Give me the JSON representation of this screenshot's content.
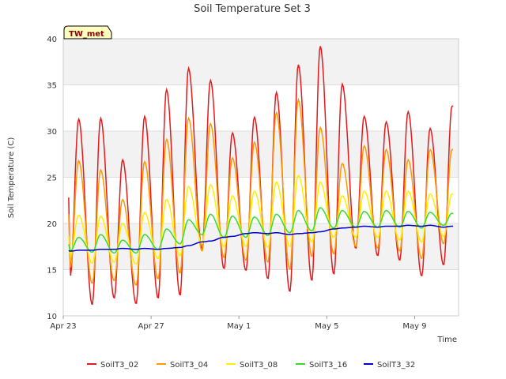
{
  "chart_data": {
    "type": "line",
    "title": "Soil Temperature Set 3",
    "xlabel": "Time",
    "ylabel": "Soil Temperature (C)",
    "xlim": [
      "2023-04-23",
      "2023-05-11"
    ],
    "ylim": [
      10,
      40
    ],
    "y_ticks": [
      10,
      15,
      20,
      25,
      30,
      35,
      40
    ],
    "x_ticks": [
      {
        "date": "2023-04-23",
        "label": "Apr 23"
      },
      {
        "date": "2023-04-27",
        "label": "Apr 27"
      },
      {
        "date": "2023-05-01",
        "label": "May 1"
      },
      {
        "date": "2023-05-05",
        "label": "May 5"
      },
      {
        "date": "2023-05-09",
        "label": "May 9"
      }
    ],
    "grid": true,
    "legend_position": "bottom",
    "badge": "TW_met",
    "series": [
      {
        "name": "SoilT3_02",
        "color": "#e41a1c",
        "x": [
          "2023-04-23",
          "2023-04-24",
          "2023-04-25",
          "2023-04-26",
          "2023-04-27",
          "2023-04-28",
          "2023-04-29",
          "2023-04-30",
          "2023-05-01",
          "2023-05-02",
          "2023-05-03",
          "2023-05-04",
          "2023-05-05",
          "2023-05-06",
          "2023-05-07",
          "2023-05-08",
          "2023-05-09",
          "2023-05-10"
        ],
        "max": [
          31.3,
          31.4,
          26.9,
          31.6,
          34.5,
          36.8,
          35.5,
          29.8,
          31.5,
          34.2,
          37.2,
          39.2,
          35.1,
          31.6,
          31.0,
          32.1,
          30.3,
          32.7
        ],
        "min": [
          14.3,
          11.2,
          11.9,
          11.3,
          11.9,
          12.2,
          17.2,
          15.1,
          14.9,
          14.0,
          12.6,
          13.8,
          14.5,
          17.3,
          16.5,
          16.0,
          14.3,
          15.5
        ]
      },
      {
        "name": "SoilT3_04",
        "color": "#ff9900",
        "x": [
          "2023-04-23",
          "2023-04-24",
          "2023-04-25",
          "2023-04-26",
          "2023-04-27",
          "2023-04-28",
          "2023-04-29",
          "2023-04-30",
          "2023-05-01",
          "2023-05-02",
          "2023-05-03",
          "2023-05-04",
          "2023-05-05",
          "2023-05-06",
          "2023-05-07",
          "2023-05-08",
          "2023-05-09",
          "2023-05-10"
        ],
        "max": [
          26.8,
          25.8,
          22.6,
          26.7,
          29.1,
          31.4,
          30.8,
          27.1,
          28.8,
          32.0,
          33.4,
          30.4,
          26.5,
          28.4,
          28.0,
          26.9,
          28.0,
          28.0
        ],
        "min": [
          15.2,
          13.5,
          13.8,
          13.3,
          14.0,
          14.6,
          17.0,
          16.3,
          16.0,
          15.8,
          15.0,
          16.4,
          16.7,
          17.5,
          17.3,
          17.0,
          16.2,
          17.8
        ]
      },
      {
        "name": "SoilT3_08",
        "color": "#ffee00",
        "x": [
          "2023-04-23",
          "2023-04-24",
          "2023-04-25",
          "2023-04-26",
          "2023-04-27",
          "2023-04-28",
          "2023-04-29",
          "2023-04-30",
          "2023-05-01",
          "2023-05-02",
          "2023-05-03",
          "2023-05-04",
          "2023-05-05",
          "2023-05-06",
          "2023-05-07",
          "2023-05-08",
          "2023-05-09",
          "2023-05-10"
        ],
        "max": [
          20.9,
          20.8,
          20.0,
          21.2,
          22.6,
          24.0,
          24.2,
          23.0,
          23.5,
          24.5,
          25.2,
          24.5,
          23.0,
          23.5,
          23.5,
          23.5,
          23.2,
          23.2
        ],
        "min": [
          16.5,
          15.7,
          15.8,
          15.6,
          16.2,
          16.5,
          17.8,
          17.5,
          17.5,
          17.4,
          17.5,
          18.0,
          18.5,
          18.5,
          18.5,
          18.2,
          18.0,
          18.6
        ]
      },
      {
        "name": "SoilT3_16",
        "color": "#33dd33",
        "x": [
          "2023-04-23",
          "2023-04-24",
          "2023-04-25",
          "2023-04-26",
          "2023-04-27",
          "2023-04-28",
          "2023-04-29",
          "2023-04-30",
          "2023-05-01",
          "2023-05-02",
          "2023-05-03",
          "2023-05-04",
          "2023-05-05",
          "2023-05-06",
          "2023-05-07",
          "2023-05-08",
          "2023-05-09",
          "2023-05-10"
        ],
        "max": [
          18.5,
          18.8,
          18.2,
          18.8,
          19.4,
          20.4,
          21.0,
          20.8,
          20.7,
          21.0,
          21.4,
          21.7,
          21.4,
          21.3,
          21.4,
          21.3,
          21.2,
          21.1
        ],
        "min": [
          17.0,
          16.9,
          16.8,
          16.8,
          17.2,
          17.8,
          18.8,
          18.5,
          18.5,
          18.7,
          19.0,
          19.2,
          19.5,
          19.6,
          19.6,
          19.6,
          19.5,
          19.8
        ]
      },
      {
        "name": "SoilT3_32",
        "color": "#0000cc",
        "x": [
          "2023-04-23",
          "2023-04-24",
          "2023-04-25",
          "2023-04-26",
          "2023-04-27",
          "2023-04-28",
          "2023-04-29",
          "2023-04-30",
          "2023-05-01",
          "2023-05-02",
          "2023-05-03",
          "2023-05-04",
          "2023-05-05",
          "2023-05-06",
          "2023-05-07",
          "2023-05-08",
          "2023-05-09",
          "2023-05-10"
        ],
        "max": [
          17.1,
          17.2,
          17.3,
          17.3,
          17.3,
          17.6,
          18.1,
          18.6,
          19.0,
          19.0,
          18.9,
          19.1,
          19.5,
          19.7,
          19.7,
          19.8,
          19.8,
          19.7
        ],
        "min": [
          17.0,
          17.1,
          17.2,
          17.2,
          17.2,
          17.4,
          18.0,
          18.5,
          18.9,
          18.9,
          18.8,
          19.0,
          19.4,
          19.6,
          19.6,
          19.7,
          19.7,
          19.6
        ]
      }
    ]
  }
}
